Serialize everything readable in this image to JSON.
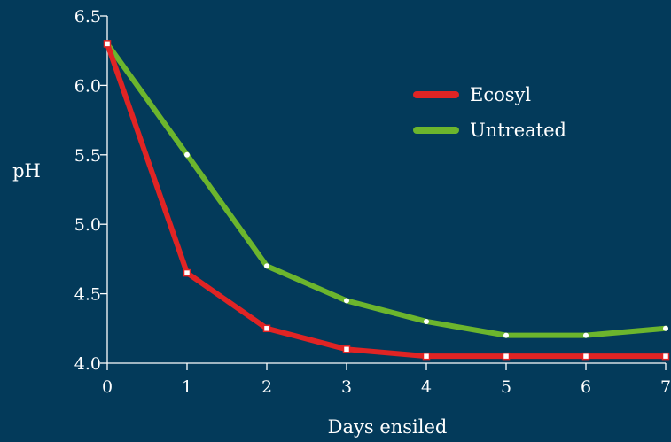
{
  "chart_data": {
    "type": "line",
    "title": "",
    "xlabel": "Days ensiled",
    "ylabel": "pH",
    "x": [
      0,
      1,
      2,
      3,
      4,
      5,
      6,
      7
    ],
    "xticks": [
      "0",
      "1",
      "2",
      "3",
      "4",
      "5",
      "6",
      "7"
    ],
    "yticks": [
      "4.0",
      "4.5",
      "5.0",
      "5.5",
      "6.0",
      "6.5"
    ],
    "xlim": [
      0,
      7
    ],
    "ylim": [
      4.0,
      6.5
    ],
    "grid": false,
    "legend_position": "top-right",
    "series": [
      {
        "name": "Ecosyl",
        "color": "#e02424",
        "marker": "square",
        "values": [
          6.3,
          4.65,
          4.25,
          4.1,
          4.05,
          4.05,
          4.05,
          4.05
        ]
      },
      {
        "name": "Untreated",
        "color": "#6cb52d",
        "marker": "circle",
        "values": [
          6.3,
          5.5,
          4.7,
          4.45,
          4.3,
          4.2,
          4.2,
          4.25
        ]
      }
    ]
  },
  "colors": {
    "background": "#033a5a",
    "axis": "#ffffff",
    "text": "#ffffff"
  }
}
